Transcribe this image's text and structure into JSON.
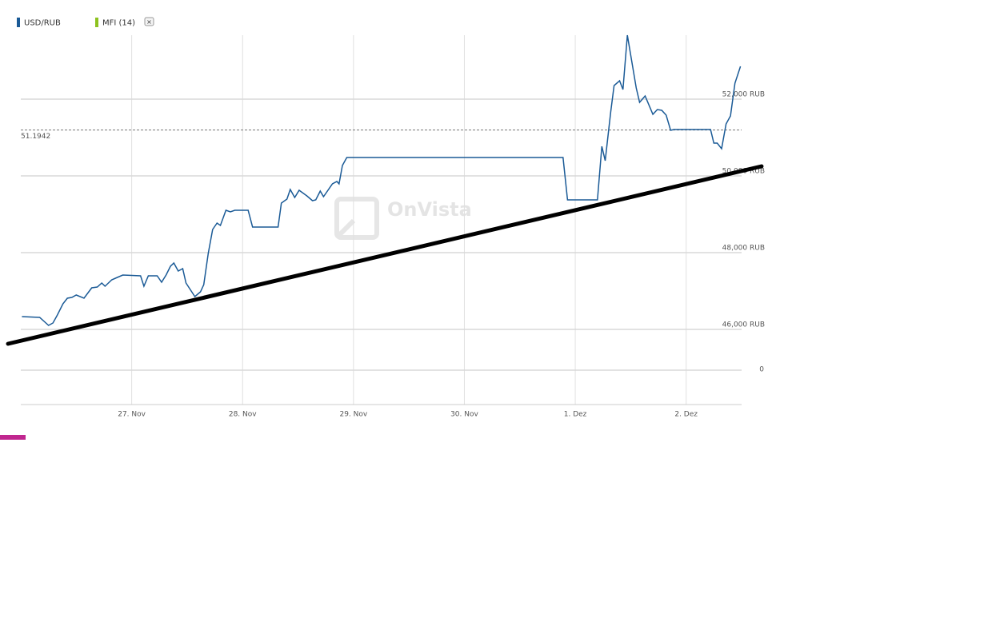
{
  "chart_data": {
    "type": "line",
    "watermark": "OnVista",
    "xlim": [
      26,
      32.5
    ],
    "xticks": [
      {
        "value": 27,
        "label": "27. Nov"
      },
      {
        "value": 28,
        "label": "28. Nov"
      },
      {
        "value": 29,
        "label": "29. Nov"
      },
      {
        "value": 30,
        "label": "30. Nov"
      },
      {
        "value": 31,
        "label": "1. Dez"
      },
      {
        "value": 32,
        "label": "2. Dez"
      }
    ],
    "ylim": [
      45400,
      54000
    ],
    "yticks": [
      {
        "value": 46000,
        "label": "46,000 RUB"
      },
      {
        "value": 48000,
        "label": "48,000 RUB"
      },
      {
        "value": 50000,
        "label": "50,000 RUB"
      },
      {
        "value": 52000,
        "label": "52,000 RUB"
      }
    ],
    "grid": true,
    "reference_line": {
      "value": 51194.2,
      "label": "51.1942"
    },
    "series": [
      {
        "name": "USD/RUB",
        "color": "#1a5a96",
        "x": [
          26.01,
          26.17,
          26.25,
          26.29,
          26.33,
          26.38,
          26.42,
          26.46,
          26.5,
          26.57,
          26.64,
          26.69,
          26.73,
          26.76,
          26.82,
          26.87,
          26.92,
          27.08,
          27.11,
          27.15,
          27.23,
          27.27,
          27.31,
          27.35,
          27.38,
          27.42,
          27.46,
          27.49,
          27.57,
          27.62,
          27.65,
          27.69,
          27.73,
          27.77,
          27.8,
          27.85,
          27.89,
          27.93,
          28.05,
          28.09,
          28.32,
          28.35,
          28.4,
          28.43,
          28.47,
          28.51,
          28.58,
          28.63,
          28.66,
          28.7,
          28.73,
          28.81,
          28.85,
          28.87,
          28.9,
          28.94,
          30.89,
          30.93,
          31.2,
          31.24,
          31.27,
          31.32,
          31.35,
          31.4,
          31.43,
          31.47,
          31.55,
          31.58,
          31.63,
          31.7,
          31.74,
          31.78,
          31.82,
          31.86,
          31.89,
          32.09,
          32.22,
          32.25,
          32.28,
          32.32,
          32.36,
          32.4,
          32.44,
          32.49
        ],
        "values": [
          46333,
          46313,
          46104,
          46167,
          46375,
          46667,
          46813,
          46833,
          46896,
          46813,
          47083,
          47104,
          47208,
          47125,
          47292,
          47354,
          47417,
          47396,
          47125,
          47396,
          47396,
          47229,
          47417,
          47646,
          47729,
          47521,
          47583,
          47208,
          46854,
          46979,
          47167,
          47979,
          48604,
          48771,
          48708,
          49104,
          49063,
          49104,
          49104,
          48667,
          48667,
          49292,
          49396,
          49646,
          49438,
          49625,
          49479,
          49354,
          49375,
          49604,
          49458,
          49792,
          49854,
          49792,
          50271,
          50479,
          50479,
          49375,
          49375,
          50771,
          50396,
          51667,
          52354,
          52479,
          52250,
          53667,
          52292,
          51917,
          52083,
          51604,
          51729,
          51708,
          51583,
          51188,
          51208,
          51208,
          51208,
          50854,
          50854,
          50708,
          51354,
          51563,
          52417,
          52854
        ]
      }
    ],
    "indicators": [
      {
        "name": "MFI (14)",
        "color": "#8dc21f",
        "yticks": [
          0
        ]
      }
    ],
    "trendline": {
      "color": "#000000",
      "x": [
        25.885,
        32.68
      ],
      "values": [
        45625,
        50250
      ]
    }
  }
}
